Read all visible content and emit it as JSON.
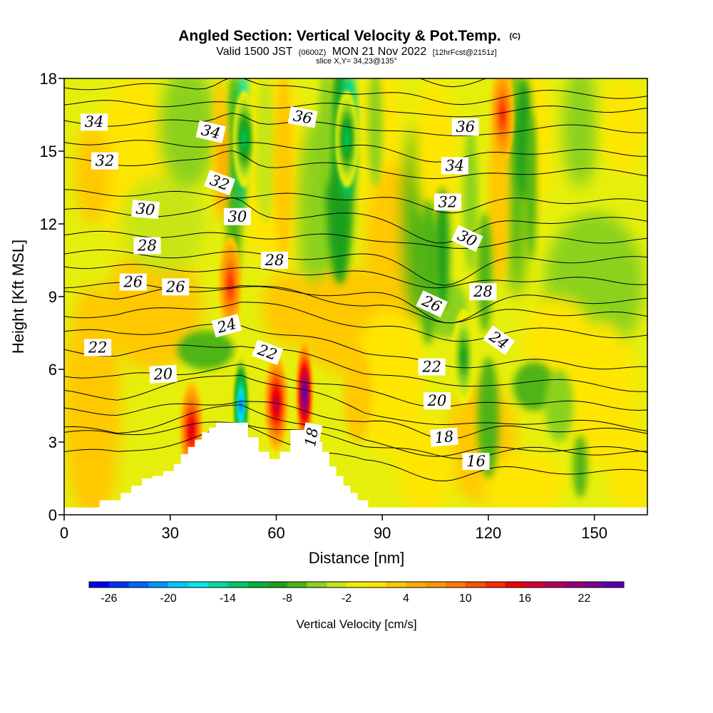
{
  "title": {
    "main": "Angled Section: Vertical Velocity & Pot.Temp.",
    "main_units": "(C)",
    "valid_prefix": "Valid 1500 JST",
    "valid_utc": "(0600Z)",
    "valid_date": "MON 21 Nov 2022",
    "forecast": "[12hrFcst@2151z]",
    "slice": "slice X,Y= 34,23@135°"
  },
  "chart_data": {
    "type": "heatmap",
    "xlabel": "Distance [nm]",
    "ylabel": "Height [Kft MSL]",
    "xlim": [
      0,
      165
    ],
    "ylim": [
      0,
      18
    ],
    "x_ticks": [
      0,
      30,
      60,
      90,
      120,
      150
    ],
    "y_ticks": [
      0,
      3,
      6,
      9,
      12,
      15,
      18
    ],
    "colorbar": {
      "label": "Vertical Velocity [cm/s]",
      "ticks": [
        "-26",
        "-20",
        "-14",
        "-8",
        "-2",
        "4",
        "10",
        "16",
        "22"
      ],
      "min": -28,
      "max": 26,
      "step": 2,
      "colors": [
        "#0000f0",
        "#0032f5",
        "#0064ff",
        "#0096ff",
        "#00c8ff",
        "#00e8e8",
        "#00dca0",
        "#00c864",
        "#00b43c",
        "#1ea01e",
        "#50b414",
        "#8cd21e",
        "#c8e614",
        "#f0f000",
        "#ffe600",
        "#ffc800",
        "#ffaa00",
        "#ff9600",
        "#ff7800",
        "#ff5000",
        "#ff2800",
        "#f00000",
        "#d20032",
        "#b4005a",
        "#960078",
        "#780096",
        "#5a00b4"
      ]
    },
    "features": [
      {
        "name": "downdraft",
        "x": 50,
        "y": 4.5,
        "value": -24
      },
      {
        "name": "updraft",
        "x": 60,
        "y": 4.6,
        "value": 18
      },
      {
        "name": "updraft",
        "x": 68,
        "y": 5.0,
        "value": 26
      },
      {
        "name": "updraft",
        "x": 36,
        "y": 3.5,
        "value": 16
      },
      {
        "name": "updraft",
        "x": 47,
        "y": 9.5,
        "value": 12
      },
      {
        "name": "downdraft",
        "x": 51,
        "y": 15.5,
        "value": -14
      },
      {
        "name": "downdraft",
        "x": 80,
        "y": 15.5,
        "value": -14
      },
      {
        "name": "updraft",
        "x": 124,
        "y": 16.5,
        "value": 12
      },
      {
        "name": "downdraft",
        "x": 113,
        "y": 6.5,
        "value": -10
      }
    ],
    "terrain": {
      "x": [
        0,
        10,
        10,
        16,
        16,
        19,
        19,
        22,
        22,
        25,
        25,
        28,
        28,
        31,
        31,
        33,
        33,
        35,
        35,
        37,
        37,
        39,
        39,
        41,
        41,
        43,
        43,
        52,
        52,
        55,
        55,
        58,
        58,
        61,
        61,
        64,
        64,
        71,
        71,
        73,
        73,
        75,
        75,
        77,
        77,
        79,
        79,
        81,
        81,
        83,
        83,
        86,
        86,
        90,
        165
      ],
      "y": [
        0.3,
        0.3,
        0.6,
        0.6,
        0.9,
        0.9,
        1.2,
        1.2,
        1.5,
        1.5,
        1.6,
        1.6,
        1.8,
        1.8,
        2.1,
        2.1,
        2.5,
        2.5,
        2.8,
        2.8,
        3.1,
        3.1,
        3.4,
        3.4,
        3.6,
        3.6,
        3.8,
        3.8,
        3.2,
        3.2,
        2.6,
        2.6,
        2.3,
        2.3,
        2.6,
        2.6,
        3.5,
        3.5,
        3.0,
        3.0,
        2.6,
        2.6,
        2.0,
        2.0,
        1.6,
        1.6,
        1.2,
        1.2,
        0.9,
        0.9,
        0.6,
        0.6,
        0.3,
        0.3,
        0.3
      ]
    },
    "isentropes": [
      {
        "value": 16,
        "y_left": 2.6,
        "y_right": 1.7
      },
      {
        "value": 18,
        "y_left": 3.5,
        "y_right": 2.6
      },
      {
        "value": 20,
        "y_left": 5.0,
        "y_right": 3.6
      },
      {
        "value": 22,
        "y_left": 6.8,
        "y_right": 5.2
      },
      {
        "value": 24,
        "y_left": 8.3,
        "y_right": 7.4
      },
      {
        "value": 26,
        "y_left": 9.5,
        "y_right": 8.8
      },
      {
        "value": 28,
        "y_left": 10.8,
        "y_right": 10.5
      },
      {
        "value": 30,
        "y_left": 12.5,
        "y_right": 12.1
      },
      {
        "value": 32,
        "y_left": 14.6,
        "y_right": 14.1
      },
      {
        "value": 34,
        "y_left": 16.2,
        "y_right": 15.9
      },
      {
        "value": 36,
        "y_left": 17.7,
        "y_right": 17.3
      }
    ],
    "contour_labels": [
      {
        "text": "34",
        "x": 8.5,
        "y": 16.2,
        "rot": 0
      },
      {
        "text": "32",
        "x": 11.5,
        "y": 14.6,
        "rot": 0
      },
      {
        "text": "30",
        "x": 23,
        "y": 12.6,
        "rot": 5
      },
      {
        "text": "28",
        "x": 23.5,
        "y": 11.1,
        "rot": 0
      },
      {
        "text": "26",
        "x": 19.5,
        "y": 9.6,
        "rot": 0
      },
      {
        "text": "26",
        "x": 31.5,
        "y": 9.4,
        "rot": 0
      },
      {
        "text": "22",
        "x": 9.5,
        "y": 6.9,
        "rot": 0
      },
      {
        "text": "20",
        "x": 28,
        "y": 5.8,
        "rot": -3
      },
      {
        "text": "34",
        "x": 41.5,
        "y": 15.8,
        "rot": 13
      },
      {
        "text": "32",
        "x": 44,
        "y": 13.7,
        "rot": 20
      },
      {
        "text": "30",
        "x": 49,
        "y": 12.3,
        "rot": 0
      },
      {
        "text": "24",
        "x": 46,
        "y": 7.8,
        "rot": -15
      },
      {
        "text": "22",
        "x": 57.5,
        "y": 6.7,
        "rot": 20
      },
      {
        "text": "18",
        "x": 70,
        "y": 3.2,
        "rot": -80
      },
      {
        "text": "36",
        "x": 67.5,
        "y": 16.4,
        "rot": 10
      },
      {
        "text": "28",
        "x": 59.5,
        "y": 10.5,
        "rot": 0
      },
      {
        "text": "36",
        "x": 113.5,
        "y": 16.0,
        "rot": 0
      },
      {
        "text": "34",
        "x": 110.5,
        "y": 14.4,
        "rot": 0
      },
      {
        "text": "32",
        "x": 108.5,
        "y": 12.9,
        "rot": 0
      },
      {
        "text": "30",
        "x": 114,
        "y": 11.4,
        "rot": 25
      },
      {
        "text": "26",
        "x": 104,
        "y": 8.7,
        "rot": 25
      },
      {
        "text": "28",
        "x": 118.5,
        "y": 9.2,
        "rot": 0
      },
      {
        "text": "24",
        "x": 123,
        "y": 7.2,
        "rot": 35
      },
      {
        "text": "22",
        "x": 104,
        "y": 6.1,
        "rot": 0
      },
      {
        "text": "20",
        "x": 105.5,
        "y": 4.7,
        "rot": 0
      },
      {
        "text": "18",
        "x": 107.5,
        "y": 3.2,
        "rot": -5
      },
      {
        "text": "16",
        "x": 116.5,
        "y": 2.2,
        "rot": 0
      }
    ]
  }
}
